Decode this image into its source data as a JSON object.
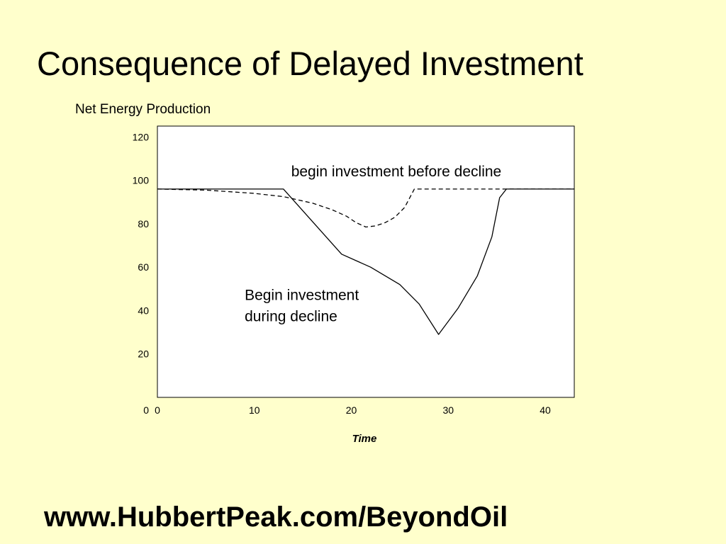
{
  "slide": {
    "title": "Consequence of Delayed Investment",
    "footer": "www.HubbertPeak.com/BeyondOil"
  },
  "chart_data": {
    "type": "line",
    "title": "",
    "ylabel": "Net Energy Production",
    "xlabel": "Time",
    "xlim": [
      0,
      43
    ],
    "ylim": [
      0,
      125
    ],
    "x_ticks": [
      0,
      10,
      20,
      30,
      40
    ],
    "y_ticks": [
      0,
      20,
      40,
      60,
      80,
      100,
      120
    ],
    "grid": false,
    "legend": "none",
    "colors": {
      "background": "#ffffcc",
      "plot_area": "#ffffff",
      "lines": "#000000"
    },
    "series": [
      {
        "name": "begin investment before decline",
        "style": "dashed",
        "x": [
          0,
          5,
          10,
          13,
          16,
          18,
          19.5,
          20.5,
          21.5,
          22.5,
          23.5,
          24.5,
          25.5,
          26.5,
          27.5,
          30,
          36,
          43
        ],
        "y": [
          96,
          95.5,
          94,
          92.5,
          89.5,
          86.5,
          83.5,
          80.5,
          78.5,
          79,
          80.5,
          83,
          87.5,
          96,
          96,
          96,
          96,
          96
        ]
      },
      {
        "name": "Begin investment during decline",
        "style": "solid",
        "x": [
          0,
          13,
          19,
          22,
          25,
          27,
          29,
          31,
          33,
          34.5,
          35.3,
          36,
          43
        ],
        "y": [
          96,
          96,
          66,
          60,
          52,
          43,
          29,
          41,
          56,
          74,
          92,
          96,
          96
        ]
      }
    ],
    "annotations": [
      {
        "text": "begin investment before decline",
        "x": 13.8,
        "y": 104.5
      },
      {
        "lines": [
          "Begin investment",
          "during decline"
        ],
        "x": 9,
        "y": 47.5
      }
    ]
  }
}
